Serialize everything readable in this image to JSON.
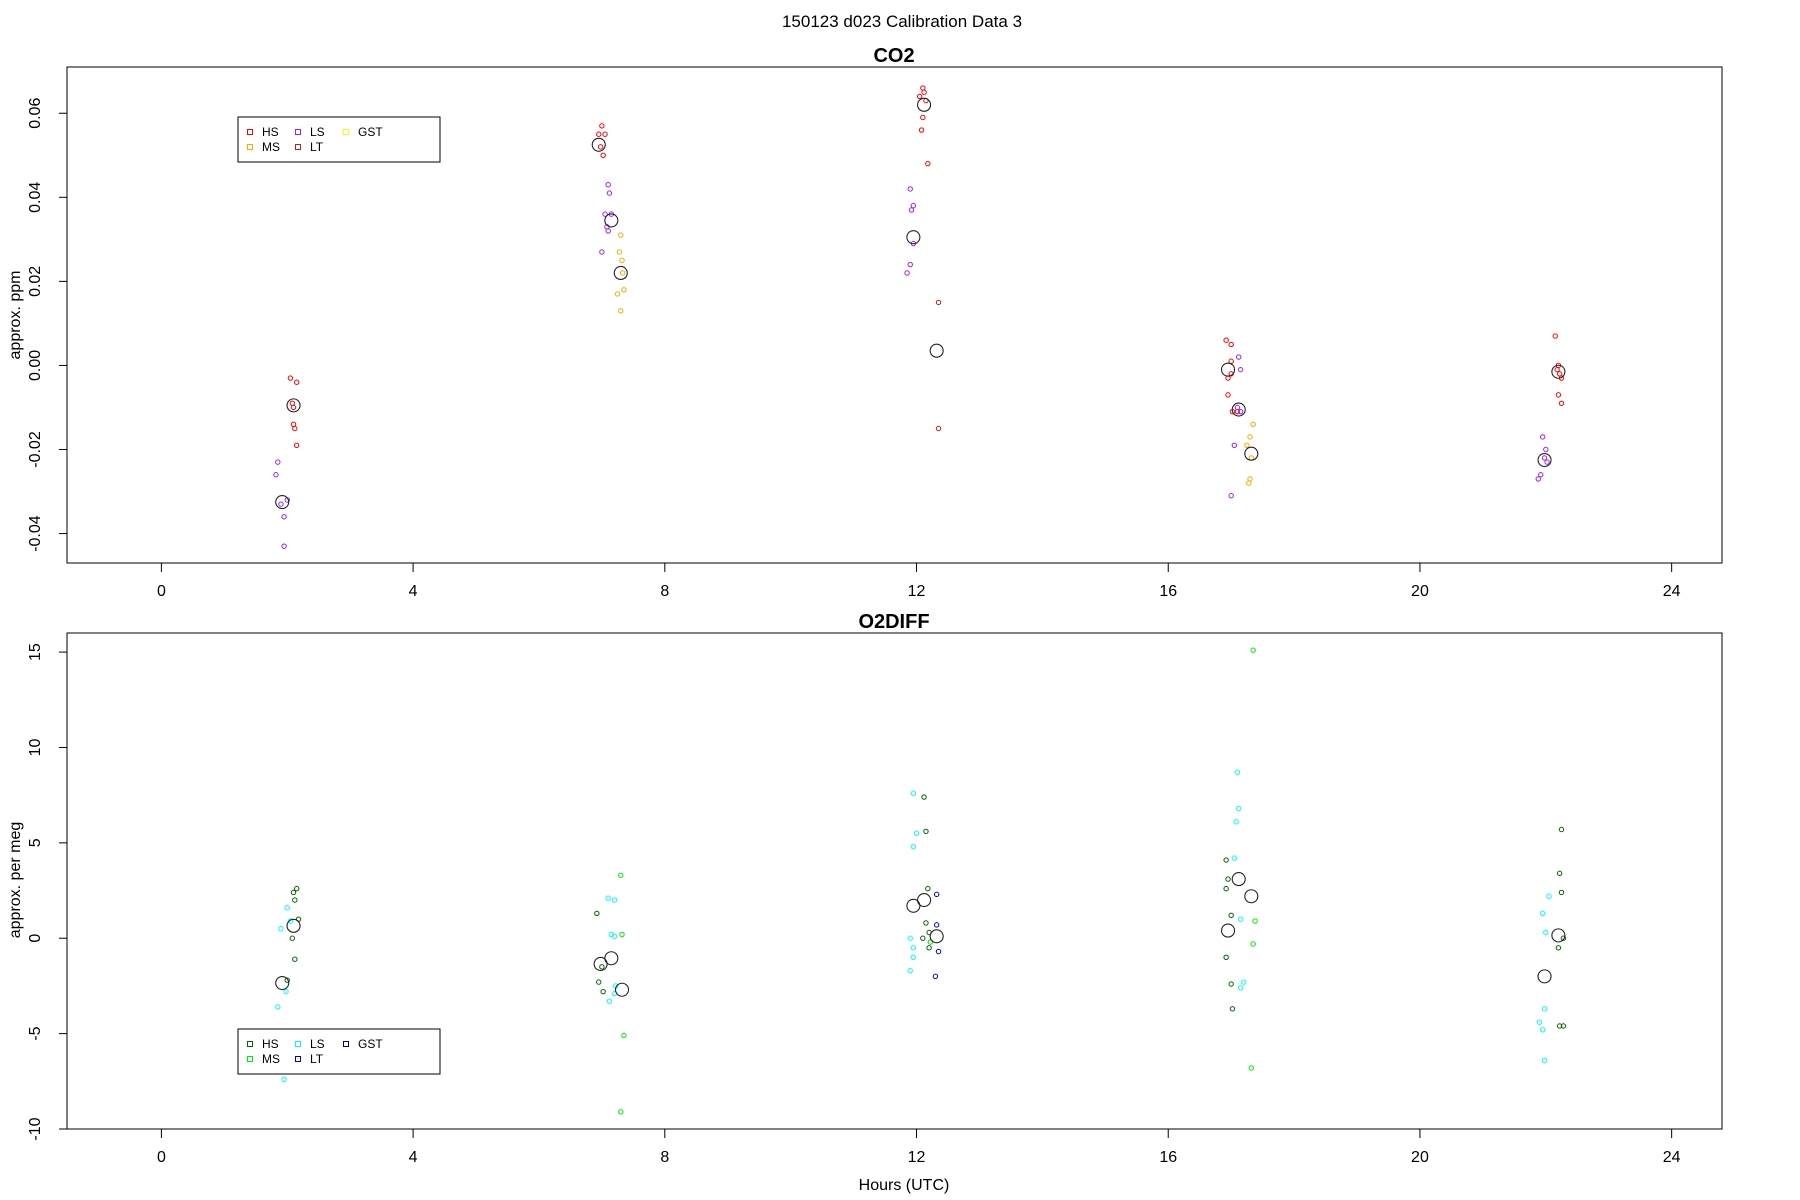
{
  "suptitle": "150123   d023   Calibration Data 3",
  "xlabel": "Hours (UTC)",
  "chart_data": [
    {
      "type": "scatter",
      "title": "CO2",
      "ylabel": "approx. ppm",
      "xlim": [
        -1.5,
        24.8
      ],
      "ylim": [
        -0.047,
        0.071
      ],
      "x_ticks": [
        0,
        4,
        8,
        12,
        16,
        20,
        24
      ],
      "y_ticks": [
        -0.04,
        -0.02,
        0.0,
        0.02,
        0.04,
        0.06
      ],
      "y_tick_labels": [
        "-0.04",
        "-0.02",
        "0.00",
        "0.02",
        "0.04",
        "0.06"
      ],
      "legend": {
        "position": "top-left",
        "entries": [
          {
            "name": "HS",
            "color": "#ff0000"
          },
          {
            "name": "MS",
            "color": "#ffa500"
          },
          {
            "name": "LS",
            "color": "#a020f0"
          },
          {
            "name": "LT",
            "color": "#b22222"
          },
          {
            "name": "GST",
            "color": "#ffff00"
          }
        ]
      },
      "series": [
        {
          "name": "HS",
          "color": "#ff0000",
          "points": [
            [
              2.05,
              -0.003
            ],
            [
              2.1,
              -0.01
            ],
            [
              2.15,
              -0.004
            ],
            [
              2.1,
              -0.014
            ],
            [
              2.12,
              -0.015
            ],
            [
              2.15,
              -0.019
            ],
            [
              2.08,
              -0.009
            ],
            [
              6.95,
              0.055
            ],
            [
              7.0,
              0.057
            ],
            [
              7.02,
              0.05
            ],
            [
              6.98,
              0.052
            ],
            [
              7.05,
              0.055
            ],
            [
              12.1,
              0.066
            ],
            [
              12.12,
              0.065
            ],
            [
              12.15,
              0.063
            ],
            [
              12.1,
              0.059
            ],
            [
              12.08,
              0.056
            ],
            [
              12.18,
              0.048
            ],
            [
              12.05,
              0.064
            ],
            [
              16.92,
              0.006
            ],
            [
              17.0,
              0.005
            ],
            [
              16.95,
              -0.003
            ],
            [
              17.0,
              -0.002
            ],
            [
              16.95,
              -0.007
            ],
            [
              17.02,
              -0.011
            ],
            [
              17.1,
              -0.011
            ],
            [
              17.0,
              0.001
            ],
            [
              22.15,
              0.007
            ],
            [
              22.2,
              0.0
            ],
            [
              22.22,
              -0.002
            ],
            [
              22.25,
              -0.003
            ],
            [
              22.2,
              -0.007
            ],
            [
              22.25,
              -0.009
            ],
            [
              22.18,
              -0.001
            ]
          ]
        },
        {
          "name": "MS",
          "color": "#ffa500",
          "points": [
            [
              7.3,
              0.031
            ],
            [
              7.28,
              0.027
            ],
            [
              7.32,
              0.025
            ],
            [
              7.35,
              0.018
            ],
            [
              7.25,
              0.017
            ],
            [
              7.3,
              0.013
            ],
            [
              7.33,
              0.022
            ],
            [
              17.35,
              -0.014
            ],
            [
              17.3,
              -0.017
            ],
            [
              17.25,
              -0.019
            ],
            [
              17.32,
              -0.022
            ],
            [
              17.3,
              -0.027
            ],
            [
              17.28,
              -0.028
            ]
          ]
        },
        {
          "name": "LS",
          "color": "#a020f0",
          "points": [
            [
              1.85,
              -0.023
            ],
            [
              1.82,
              -0.026
            ],
            [
              1.9,
              -0.033
            ],
            [
              1.95,
              -0.036
            ],
            [
              1.95,
              -0.043
            ],
            [
              2.0,
              -0.032
            ],
            [
              7.1,
              0.043
            ],
            [
              7.12,
              0.041
            ],
            [
              7.05,
              0.036
            ],
            [
              7.15,
              0.036
            ],
            [
              7.08,
              0.033
            ],
            [
              7.1,
              0.032
            ],
            [
              7.0,
              0.027
            ],
            [
              11.9,
              0.042
            ],
            [
              11.95,
              0.038
            ],
            [
              11.92,
              0.037
            ],
            [
              11.95,
              0.029
            ],
            [
              11.9,
              0.024
            ],
            [
              11.85,
              0.022
            ],
            [
              17.12,
              0.002
            ],
            [
              17.15,
              -0.001
            ],
            [
              17.1,
              -0.01
            ],
            [
              17.15,
              -0.011
            ],
            [
              17.05,
              -0.019
            ],
            [
              17.0,
              -0.031
            ],
            [
              21.95,
              -0.017
            ],
            [
              22.0,
              -0.02
            ],
            [
              21.98,
              -0.022
            ],
            [
              22.02,
              -0.023
            ],
            [
              21.92,
              -0.026
            ],
            [
              21.88,
              -0.027
            ]
          ]
        },
        {
          "name": "LT",
          "color": "#b22222",
          "points": [
            [
              12.35,
              0.015
            ],
            [
              12.35,
              -0.015
            ]
          ]
        }
      ],
      "means": [
        [
          1.92,
          -0.0325
        ],
        [
          2.1,
          -0.0095
        ],
        [
          6.95,
          0.0525
        ],
        [
          7.15,
          0.0345
        ],
        [
          7.3,
          0.022
        ],
        [
          11.95,
          0.0305
        ],
        [
          12.12,
          0.062
        ],
        [
          12.32,
          0.0035
        ],
        [
          16.95,
          -0.001
        ],
        [
          17.12,
          -0.0105
        ],
        [
          17.32,
          -0.021
        ],
        [
          21.98,
          -0.0225
        ],
        [
          22.2,
          -0.0015
        ]
      ]
    },
    {
      "type": "scatter",
      "title": "O2DIFF",
      "ylabel": "approx. per meg",
      "xlim": [
        -1.5,
        24.8
      ],
      "ylim": [
        -10.0,
        16.0
      ],
      "x_ticks": [
        0,
        4,
        8,
        12,
        16,
        20,
        24
      ],
      "y_ticks": [
        -10,
        -5,
        0,
        5,
        10,
        15
      ],
      "y_tick_labels": [
        "-10",
        "-5",
        "0",
        "5",
        "10",
        "15"
      ],
      "legend": {
        "position": "bottom-left",
        "entries": [
          {
            "name": "HS",
            "color": "#006400"
          },
          {
            "name": "MS",
            "color": "#00ee00"
          },
          {
            "name": "LS",
            "color": "#00ffff"
          },
          {
            "name": "LT",
            "color": "#0000cd"
          },
          {
            "name": "GST",
            "color": "#00008b"
          }
        ]
      },
      "series": [
        {
          "name": "HS",
          "color": "#006400",
          "points": [
            [
              2.15,
              2.6
            ],
            [
              2.1,
              2.4
            ],
            [
              2.12,
              2.0
            ],
            [
              2.18,
              1.0
            ],
            [
              2.08,
              0.0
            ],
            [
              2.12,
              -1.1
            ],
            [
              2.0,
              -2.2
            ],
            [
              6.92,
              1.3
            ],
            [
              7.0,
              -1.5
            ],
            [
              6.95,
              -2.3
            ],
            [
              7.02,
              -2.8
            ],
            [
              12.12,
              7.4
            ],
            [
              12.15,
              5.6
            ],
            [
              12.18,
              2.6
            ],
            [
              12.15,
              0.8
            ],
            [
              12.2,
              0.3
            ],
            [
              12.2,
              -0.5
            ],
            [
              12.1,
              0.0
            ],
            [
              16.92,
              4.1
            ],
            [
              16.95,
              3.1
            ],
            [
              16.92,
              2.6
            ],
            [
              17.0,
              1.2
            ],
            [
              16.92,
              -1.0
            ],
            [
              17.0,
              -2.4
            ],
            [
              17.02,
              -3.7
            ],
            [
              22.25,
              5.7
            ],
            [
              22.22,
              3.4
            ],
            [
              22.25,
              2.4
            ],
            [
              22.28,
              0.0
            ],
            [
              22.2,
              -0.5
            ],
            [
              22.22,
              -4.6
            ],
            [
              22.28,
              -4.6
            ]
          ]
        },
        {
          "name": "MS",
          "color": "#00ee00",
          "points": [
            [
              7.3,
              3.3
            ],
            [
              7.32,
              0.2
            ],
            [
              7.35,
              -5.1
            ],
            [
              7.3,
              -9.1
            ],
            [
              12.22,
              -0.2
            ],
            [
              17.35,
              15.1
            ],
            [
              17.38,
              0.9
            ],
            [
              17.35,
              -0.3
            ],
            [
              17.32,
              -6.8
            ]
          ]
        },
        {
          "name": "LS",
          "color": "#00ffff",
          "points": [
            [
              1.9,
              0.5
            ],
            [
              2.0,
              1.6
            ],
            [
              2.05,
              0.9
            ],
            [
              1.98,
              -2.8
            ],
            [
              1.85,
              -3.6
            ],
            [
              1.95,
              -7.4
            ],
            [
              7.1,
              2.1
            ],
            [
              7.2,
              2.0
            ],
            [
              7.15,
              0.2
            ],
            [
              7.2,
              0.1
            ],
            [
              7.22,
              -2.5
            ],
            [
              7.2,
              -2.9
            ],
            [
              7.12,
              -3.3
            ],
            [
              11.95,
              7.6
            ],
            [
              12.0,
              5.5
            ],
            [
              11.95,
              4.8
            ],
            [
              11.9,
              0.0
            ],
            [
              11.95,
              -0.5
            ],
            [
              11.95,
              -1.0
            ],
            [
              11.9,
              -1.7
            ],
            [
              17.1,
              8.7
            ],
            [
              17.12,
              6.8
            ],
            [
              17.08,
              6.1
            ],
            [
              17.05,
              4.2
            ],
            [
              17.15,
              1.0
            ],
            [
              17.2,
              -2.3
            ],
            [
              17.15,
              -2.6
            ],
            [
              22.05,
              2.2
            ],
            [
              21.95,
              1.3
            ],
            [
              22.0,
              0.3
            ],
            [
              21.98,
              -3.7
            ],
            [
              21.9,
              -4.4
            ],
            [
              21.95,
              -4.8
            ],
            [
              21.98,
              -6.4
            ]
          ]
        },
        {
          "name": "LT",
          "color": "#0000cd",
          "points": [
            [
              12.32,
              2.3
            ],
            [
              12.32,
              0.7
            ],
            [
              12.35,
              -0.7
            ],
            [
              12.3,
              -2.0
            ]
          ]
        }
      ],
      "means": [
        [
          1.92,
          -2.35
        ],
        [
          2.1,
          0.65
        ],
        [
          6.98,
          -1.35
        ],
        [
          7.15,
          -1.05
        ],
        [
          7.32,
          -2.7
        ],
        [
          11.95,
          1.7
        ],
        [
          12.12,
          2.0
        ],
        [
          12.32,
          0.1
        ],
        [
          16.95,
          0.4
        ],
        [
          17.12,
          3.1
        ],
        [
          17.32,
          2.2
        ],
        [
          21.98,
          -2.0
        ],
        [
          22.2,
          0.15
        ]
      ]
    }
  ]
}
